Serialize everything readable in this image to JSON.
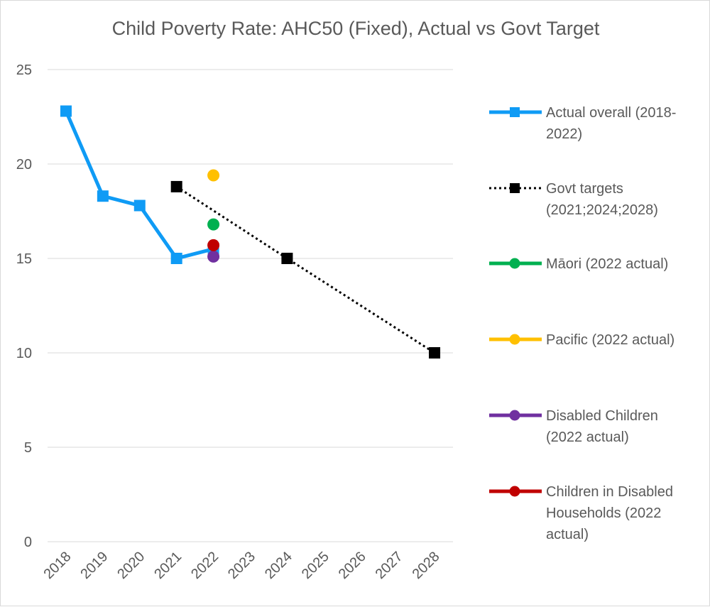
{
  "chart_data": {
    "type": "line",
    "title": "Child Poverty Rate: AHC50 (Fixed), Actual vs Govt Target",
    "xlabel": "",
    "ylabel": "",
    "categories": [
      "2018",
      "2019",
      "2020",
      "2021",
      "2022",
      "2023",
      "2024",
      "2025",
      "2026",
      "2027",
      "2028"
    ],
    "yticks": [
      "0",
      "5",
      "10",
      "15",
      "20",
      "25"
    ],
    "ylim": [
      0,
      25
    ],
    "grid": true,
    "legend_position": "right",
    "series": [
      {
        "name": "Actual overall (2018-2022)",
        "legend_lines": [
          "Actual overall (2018-",
          "2022)"
        ],
        "color": "#0F9BF5",
        "line": "solid",
        "marker": "square",
        "points": [
          {
            "x": "2018",
            "y": 22.8
          },
          {
            "x": "2019",
            "y": 18.3
          },
          {
            "x": "2020",
            "y": 17.8
          },
          {
            "x": "2021",
            "y": 15.0
          },
          {
            "x": "2022",
            "y": 15.5
          }
        ]
      },
      {
        "name": "Govt targets (2021;2024;2028)",
        "legend_lines": [
          "Govt targets",
          "(2021;2024;2028)"
        ],
        "color": "#000000",
        "line": "dotted",
        "marker": "square",
        "points": [
          {
            "x": "2021",
            "y": 18.8
          },
          {
            "x": "2024",
            "y": 15.0
          },
          {
            "x": "2028",
            "y": 10.0
          }
        ]
      },
      {
        "name": "Māori (2022 actual)",
        "legend_lines": [
          "Māori (2022 actual)"
        ],
        "color": "#00B050",
        "line": "none",
        "marker": "circle",
        "points": [
          {
            "x": "2022",
            "y": 16.8
          }
        ]
      },
      {
        "name": "Pacific (2022 actual)",
        "legend_lines": [
          "Pacific (2022 actual)"
        ],
        "color": "#FFC000",
        "line": "none",
        "marker": "circle",
        "points": [
          {
            "x": "2022",
            "y": 19.4
          }
        ]
      },
      {
        "name": "Disabled Children (2022 actual)",
        "legend_lines": [
          "Disabled Children",
          "(2022 actual)"
        ],
        "color": "#7030A0",
        "line": "none",
        "marker": "circle",
        "points": [
          {
            "x": "2022",
            "y": 15.1
          }
        ]
      },
      {
        "name": "Children in Disabled Households (2022 actual)",
        "legend_lines": [
          "Children in Disabled",
          "Households (2022",
          "actual)"
        ],
        "color": "#C00000",
        "line": "none",
        "marker": "circle",
        "points": [
          {
            "x": "2022",
            "y": 15.7
          }
        ]
      }
    ]
  }
}
